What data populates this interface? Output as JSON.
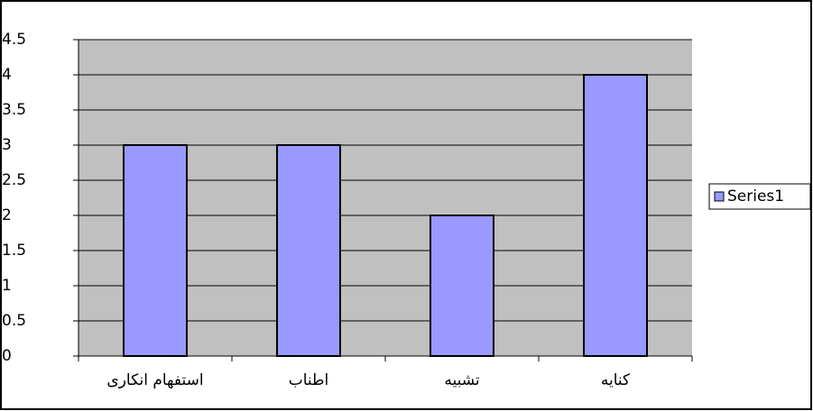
{
  "chart_data": {
    "type": "bar",
    "categories": [
      "استفهام انکاری",
      "اطناب",
      "تشبیه",
      "کنایه"
    ],
    "series": [
      {
        "name": "Series1",
        "color": "#9999ff",
        "values": [
          3,
          3,
          2,
          4
        ]
      }
    ],
    "ylim": [
      0,
      4.5
    ],
    "yticks": [
      0,
      0.5,
      1,
      1.5,
      2,
      2.5,
      3,
      3.5,
      4,
      4.5
    ],
    "grid": true,
    "legend": "right"
  }
}
